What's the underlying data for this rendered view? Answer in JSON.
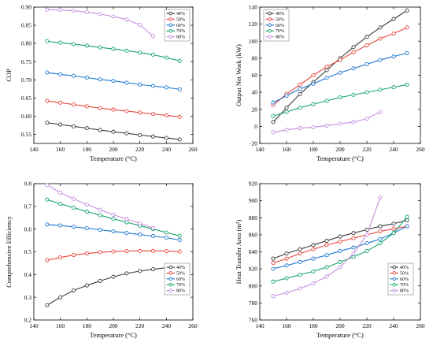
{
  "chart_data": [
    {
      "type": "line",
      "xlabel": "Temperature (°C)",
      "ylabel": "COP",
      "xlim": [
        140,
        260
      ],
      "ylim": [
        0.525,
        0.9
      ],
      "xticks": [
        140,
        160,
        180,
        200,
        220,
        240,
        260
      ],
      "yticks": [
        0.55,
        0.6,
        0.65,
        0.7,
        0.75,
        0.8,
        0.85,
        0.9
      ],
      "ytick_labels": [
        "0.55",
        "0.60",
        "0.65",
        "0.70",
        "0.75",
        "0.80",
        "0.85",
        "0.90"
      ],
      "legend_position": "top-right",
      "series": [
        {
          "name": "40%",
          "color": "#3a3a3a",
          "x": [
            150,
            160,
            170,
            180,
            190,
            200,
            210,
            220,
            230,
            240,
            250
          ],
          "values": [
            0.582,
            0.577,
            0.572,
            0.567,
            0.562,
            0.557,
            0.553,
            0.548,
            0.544,
            0.54,
            0.536
          ]
        },
        {
          "name": "50%",
          "color": "#e8433b",
          "x": [
            150,
            160,
            170,
            180,
            190,
            200,
            210,
            220,
            230,
            240,
            250
          ],
          "values": [
            0.642,
            0.637,
            0.632,
            0.627,
            0.622,
            0.618,
            0.614,
            0.61,
            0.606,
            0.602,
            0.598
          ]
        },
        {
          "name": "60%",
          "color": "#1f77d0",
          "x": [
            150,
            160,
            170,
            180,
            190,
            200,
            210,
            220,
            230,
            240,
            250
          ],
          "values": [
            0.72,
            0.715,
            0.711,
            0.706,
            0.701,
            0.697,
            0.692,
            0.687,
            0.683,
            0.679,
            0.674
          ]
        },
        {
          "name": "70%",
          "color": "#13a36b",
          "x": [
            150,
            160,
            170,
            180,
            190,
            200,
            210,
            220,
            230,
            240,
            250
          ],
          "values": [
            0.806,
            0.802,
            0.798,
            0.794,
            0.789,
            0.785,
            0.78,
            0.775,
            0.769,
            0.761,
            0.752
          ]
        },
        {
          "name": "80%",
          "color": "#c48de0",
          "x": [
            150,
            160,
            170,
            180,
            190,
            200,
            210,
            220,
            230
          ],
          "values": [
            0.893,
            0.892,
            0.89,
            0.886,
            0.881,
            0.874,
            0.866,
            0.851,
            0.82
          ]
        }
      ]
    },
    {
      "type": "line",
      "xlabel": "Temperature (°C)",
      "ylabel": "Output Net Work (kW)",
      "xlim": [
        140,
        260
      ],
      "ylim": [
        -20,
        140
      ],
      "xticks": [
        140,
        160,
        180,
        200,
        220,
        240,
        260
      ],
      "yticks": [
        -20,
        0,
        20,
        40,
        60,
        80,
        100,
        120,
        140
      ],
      "ytick_labels": [
        "-20",
        "0",
        "20",
        "40",
        "60",
        "80",
        "100",
        "120",
        "140"
      ],
      "legend_position": "top-left",
      "series": [
        {
          "name": "40%",
          "color": "#3a3a3a",
          "x": [
            150,
            160,
            170,
            180,
            190,
            200,
            210,
            220,
            230,
            240,
            250
          ],
          "values": [
            5,
            22,
            38,
            52,
            66,
            80,
            93,
            105,
            116,
            126,
            136
          ]
        },
        {
          "name": "50%",
          "color": "#e8433b",
          "x": [
            150,
            160,
            170,
            180,
            190,
            200,
            210,
            220,
            230,
            240,
            250
          ],
          "values": [
            25,
            38,
            49,
            60,
            70,
            78,
            87,
            95,
            103,
            109,
            116
          ]
        },
        {
          "name": "60%",
          "color": "#1f77d0",
          "x": [
            150,
            160,
            170,
            180,
            190,
            200,
            210,
            220,
            230,
            240,
            250
          ],
          "values": [
            28,
            36,
            44,
            50,
            57,
            63,
            68,
            73,
            78,
            82,
            86
          ]
        },
        {
          "name": "70%",
          "color": "#13a36b",
          "x": [
            150,
            160,
            170,
            180,
            190,
            200,
            210,
            220,
            230,
            240,
            250
          ],
          "values": [
            12,
            17,
            22,
            26,
            30,
            34,
            37,
            40,
            43,
            46,
            49
          ]
        },
        {
          "name": "80%",
          "color": "#c48de0",
          "x": [
            150,
            160,
            170,
            180,
            190,
            200,
            210,
            220,
            230
          ],
          "values": [
            -7,
            -4,
            -2,
            -1,
            1,
            3,
            5,
            9,
            17
          ]
        }
      ]
    },
    {
      "type": "line",
      "xlabel": "Temperature (°C)",
      "ylabel": "Comprehensive Efficiency",
      "xlim": [
        140,
        260
      ],
      "ylim": [
        0.2,
        0.8
      ],
      "xticks": [
        140,
        160,
        180,
        200,
        220,
        240,
        260
      ],
      "yticks": [
        0.2,
        0.3,
        0.4,
        0.5,
        0.6,
        0.7,
        0.8
      ],
      "ytick_labels": [
        "0.2",
        "0.3",
        "0.4",
        "0.5",
        "0.6",
        "0.7",
        "0.8"
      ],
      "legend_position": "bottom-right",
      "series": [
        {
          "name": "40%",
          "color": "#3a3a3a",
          "x": [
            150,
            160,
            170,
            180,
            190,
            200,
            210,
            220,
            230,
            240,
            250
          ],
          "values": [
            0.265,
            0.3,
            0.33,
            0.352,
            0.372,
            0.39,
            0.405,
            0.415,
            0.423,
            0.43,
            0.437
          ]
        },
        {
          "name": "50%",
          "color": "#e8433b",
          "x": [
            150,
            160,
            170,
            180,
            190,
            200,
            210,
            220,
            230,
            240,
            250
          ],
          "values": [
            0.463,
            0.475,
            0.486,
            0.493,
            0.498,
            0.501,
            0.503,
            0.504,
            0.504,
            0.503,
            0.501
          ]
        },
        {
          "name": "60%",
          "color": "#1f77d0",
          "x": [
            150,
            160,
            170,
            180,
            190,
            200,
            210,
            220,
            230,
            240,
            250
          ],
          "values": [
            0.62,
            0.616,
            0.61,
            0.604,
            0.597,
            0.59,
            0.583,
            0.576,
            0.569,
            0.562,
            0.552
          ]
        },
        {
          "name": "70%",
          "color": "#13a36b",
          "x": [
            150,
            160,
            170,
            180,
            190,
            200,
            210,
            220,
            230,
            240,
            250
          ],
          "values": [
            0.73,
            0.711,
            0.694,
            0.677,
            0.661,
            0.645,
            0.63,
            0.615,
            0.6,
            0.585,
            0.57
          ]
        },
        {
          "name": "80%",
          "color": "#c48de0",
          "x": [
            150,
            160,
            170,
            180,
            190,
            200,
            210,
            220,
            230
          ],
          "values": [
            0.795,
            0.76,
            0.733,
            0.708,
            0.685,
            0.663,
            0.644,
            0.625,
            0.605
          ]
        }
      ]
    },
    {
      "type": "line",
      "xlabel": "Temperature (°C)",
      "ylabel": "Heat Transfer Area (m²)",
      "xlim": [
        140,
        260
      ],
      "ylim": [
        760,
        920
      ],
      "xticks": [
        140,
        160,
        180,
        200,
        220,
        240,
        260
      ],
      "yticks": [
        760,
        780,
        800,
        820,
        840,
        860,
        880,
        900,
        920
      ],
      "ytick_labels": [
        "760",
        "780",
        "800",
        "820",
        "840",
        "860",
        "880",
        "900",
        "920"
      ],
      "legend_position": "bottom-right",
      "series": [
        {
          "name": "40%",
          "color": "#3a3a3a",
          "x": [
            150,
            160,
            170,
            180,
            190,
            200,
            210,
            220,
            230,
            240,
            250
          ],
          "values": [
            832,
            838,
            843,
            848,
            853,
            858,
            862,
            866,
            870,
            873,
            877
          ]
        },
        {
          "name": "50%",
          "color": "#e8433b",
          "x": [
            150,
            160,
            170,
            180,
            190,
            200,
            210,
            220,
            230,
            240,
            250
          ],
          "values": [
            827,
            832,
            838,
            843,
            848,
            852,
            856,
            860,
            864,
            867,
            870
          ]
        },
        {
          "name": "60%",
          "color": "#1f77d0",
          "x": [
            150,
            160,
            170,
            180,
            190,
            200,
            210,
            220,
            230,
            240,
            250
          ],
          "values": [
            820,
            824,
            828,
            832,
            836,
            841,
            845,
            850,
            855,
            862,
            870
          ]
        },
        {
          "name": "70%",
          "color": "#13a36b",
          "x": [
            150,
            160,
            170,
            180,
            190,
            200,
            210,
            220,
            230,
            240,
            250
          ],
          "values": [
            805,
            809,
            813,
            817,
            822,
            828,
            834,
            841,
            850,
            862,
            881
          ]
        },
        {
          "name": "80%",
          "color": "#c48de0",
          "x": [
            150,
            160,
            170,
            180,
            190,
            200,
            210,
            220,
            230
          ],
          "values": [
            788,
            792,
            797,
            803,
            811,
            822,
            838,
            860,
            904
          ]
        }
      ]
    }
  ]
}
